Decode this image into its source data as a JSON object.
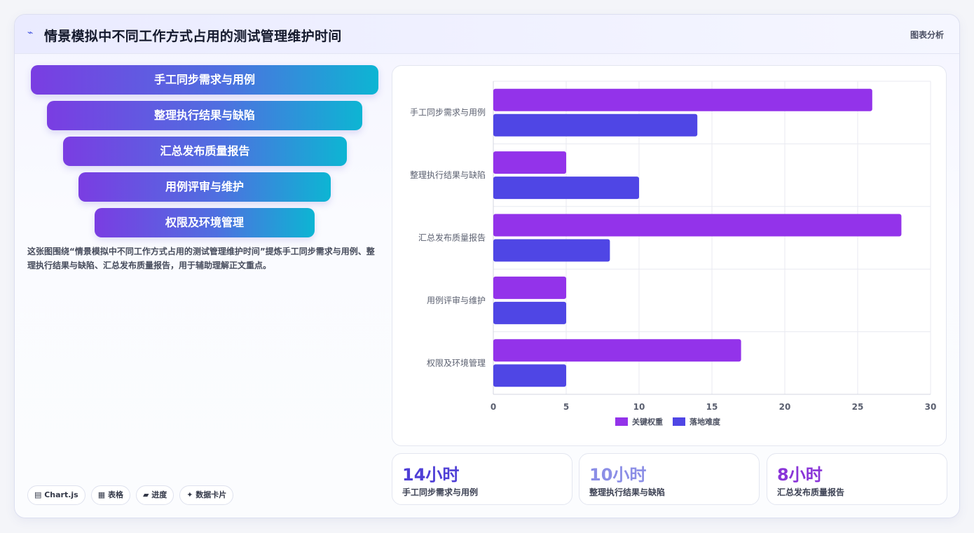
{
  "header": {
    "title": "情景模拟中不同工作方式占用的测试管理维护时间",
    "tag": "图表分析",
    "icon": "trend-icon"
  },
  "funnel": {
    "items": [
      "手工同步需求与用例",
      "整理执行结果与缺陷",
      "汇总发布质量报告",
      "用例评审与维护",
      "权限及环境管理"
    ]
  },
  "description": "这张图围绕“情景模拟中不同工作方式占用的测试管理维护时间”提炼手工同步需求与用例、整理执行结果与缺陷、汇总发布质量报告，用于辅助理解正文重点。",
  "chips": [
    "▤ Chart.js",
    "▦ 表格",
    "▰ 进度",
    "✦ 数据卡片"
  ],
  "stats": [
    {
      "value": "14小时",
      "label": "手工同步需求与用例",
      "color": "#4f3fd6"
    },
    {
      "value": "10小时",
      "label": "整理执行结果与缺陷",
      "color": "#8b8ee6"
    },
    {
      "value": "8小时",
      "label": "汇总发布质量报告",
      "color": "#8a35d8"
    }
  ],
  "chart_data": {
    "type": "bar",
    "orientation": "horizontal",
    "categories": [
      "手工同步需求与用例",
      "整理执行结果与缺陷",
      "汇总发布质量报告",
      "用例评审与维护",
      "权限及环境管理"
    ],
    "series": [
      {
        "name": "关键权重",
        "values": [
          26,
          5,
          28,
          5,
          17
        ],
        "color": "#9333ea"
      },
      {
        "name": "落地难度",
        "values": [
          14,
          10,
          8,
          5,
          5
        ],
        "color": "#4f46e5"
      }
    ],
    "xlim": [
      0,
      30
    ],
    "xticks": [
      0,
      5,
      10,
      15,
      20,
      25,
      30
    ],
    "grid": true,
    "legend": "bottom"
  }
}
